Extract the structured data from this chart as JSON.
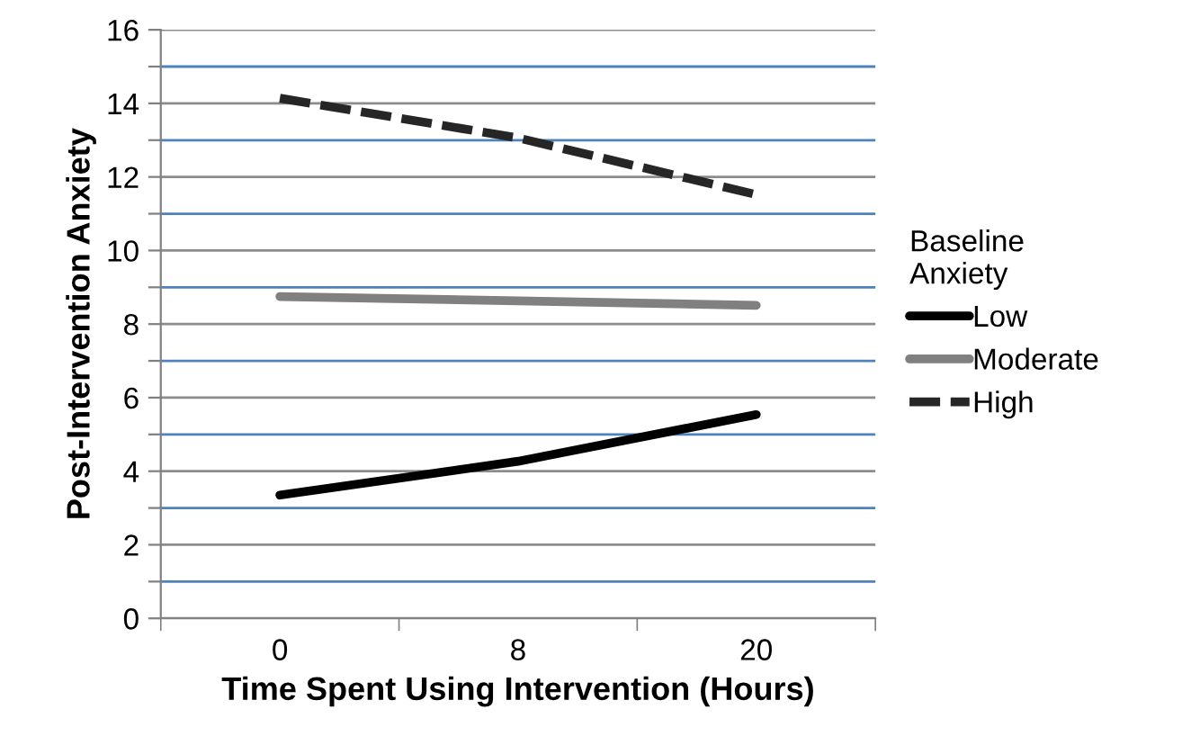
{
  "chart_data": {
    "type": "line",
    "xlabel": "Time Spent Using Intervention (Hours)",
    "ylabel": "Post-Intervention Anxiety",
    "legend_title": "Baseline\nAnxiety",
    "categories": [
      "0",
      "8",
      "20"
    ],
    "series": [
      {
        "name": "Low",
        "color": "#000000",
        "values": [
          3.35,
          4.27,
          5.54
        ],
        "line_style": "solid"
      },
      {
        "name": "Moderate",
        "color": "#808080",
        "values": [
          8.75,
          8.63,
          8.51
        ],
        "line_style": "solid"
      },
      {
        "name": "High",
        "color": "#262626",
        "values": [
          14.14,
          13.06,
          11.52
        ],
        "line_style": "dashed"
      }
    ],
    "ylim": [
      0,
      16
    ],
    "yticks": [
      0,
      {
        "value": 1,
        "label": null
      },
      2,
      {
        "value": 3,
        "label": null
      },
      4,
      {
        "value": 5,
        "label": null
      },
      6,
      {
        "value": 7,
        "label": null
      },
      8,
      {
        "value": 9,
        "label": null
      },
      10,
      {
        "value": 11,
        "label": null
      },
      12,
      {
        "value": 13,
        "label": null
      },
      14,
      {
        "value": 15,
        "label": null
      },
      16
    ],
    "grid": "y",
    "legend": "right",
    "marker": "none"
  }
}
